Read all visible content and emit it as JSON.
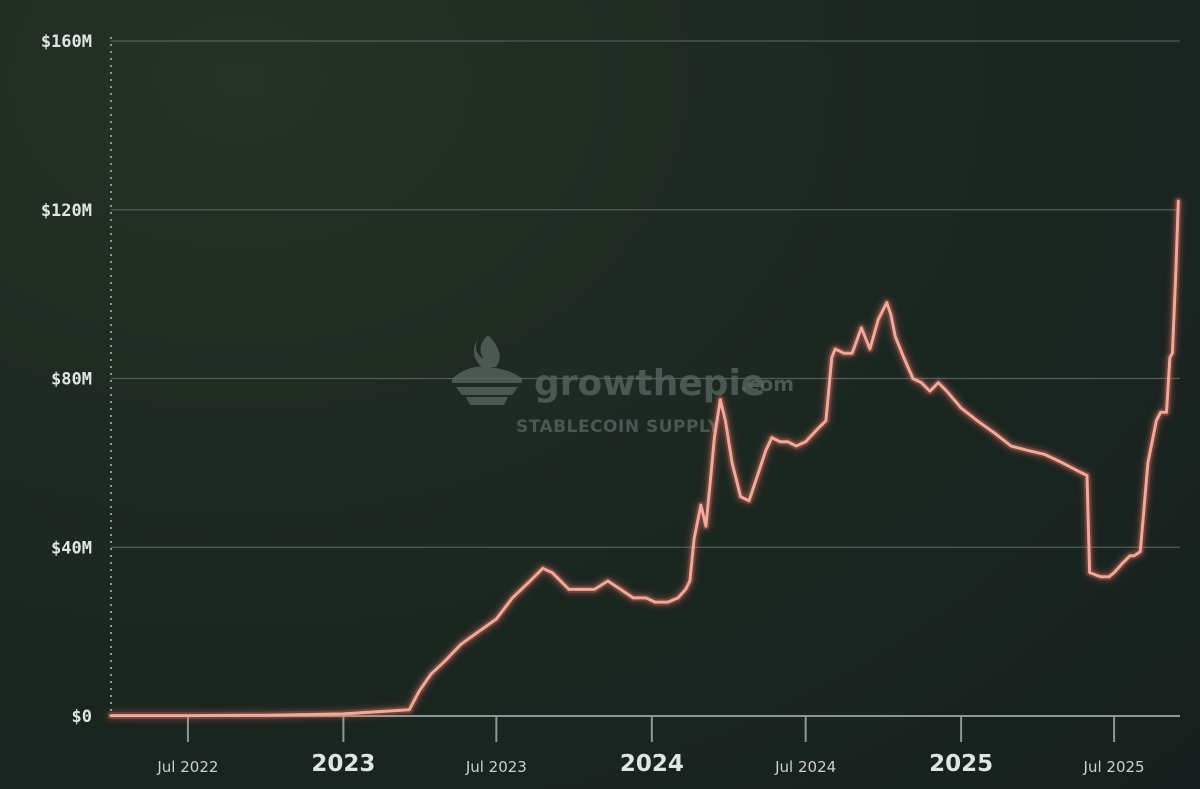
{
  "watermark": {
    "brand": "growthepie",
    "brand_suffix": ".com",
    "subtitle": "STABLECOIN SUPPLY"
  },
  "colors": {
    "line": "#f0a99b",
    "glow": "#ff7a66",
    "grid": "#5c6663",
    "axis": "#8c9894"
  },
  "chart_data": {
    "type": "line",
    "title": "",
    "xlabel": "",
    "ylabel": "",
    "ylim": [
      0,
      160
    ],
    "xlim": [
      "2022-04-01",
      "2025-09-17"
    ],
    "y_unit": "USD millions",
    "y_ticks": [
      {
        "value": 0,
        "label": "$0"
      },
      {
        "value": 40,
        "label": "$40M"
      },
      {
        "value": 80,
        "label": "$80M"
      },
      {
        "value": 120,
        "label": "$120M"
      },
      {
        "value": 160,
        "label": "$160M"
      }
    ],
    "x_ticks": [
      {
        "date": "2022-07-01",
        "label": "Jul 2022",
        "major": false
      },
      {
        "date": "2023-01-01",
        "label": "2023",
        "major": true
      },
      {
        "date": "2023-07-01",
        "label": "Jul 2023",
        "major": false
      },
      {
        "date": "2024-01-01",
        "label": "2024",
        "major": true
      },
      {
        "date": "2024-07-01",
        "label": "Jul 2024",
        "major": false
      },
      {
        "date": "2025-01-01",
        "label": "2025",
        "major": true
      },
      {
        "date": "2025-07-01",
        "label": "Jul 2025",
        "major": false
      }
    ],
    "grid": true,
    "legend": "none",
    "series": [
      {
        "x": [
          "2022-04-01",
          "2022-07-01",
          "2022-10-01",
          "2023-01-01",
          "2023-03-20",
          "2023-04-01",
          "2023-04-15",
          "2023-05-01",
          "2023-05-20",
          "2023-06-10",
          "2023-07-01",
          "2023-07-20",
          "2023-08-10",
          "2023-08-25",
          "2023-09-05",
          "2023-09-15",
          "2023-09-25",
          "2023-10-10",
          "2023-10-25",
          "2023-11-10",
          "2023-11-25",
          "2023-12-10",
          "2023-12-25",
          "2024-01-05",
          "2024-01-20",
          "2024-02-01",
          "2024-02-10",
          "2024-02-15",
          "2024-02-20",
          "2024-02-28",
          "2024-03-05",
          "2024-03-10",
          "2024-03-15",
          "2024-03-22",
          "2024-03-28",
          "2024-04-05",
          "2024-04-15",
          "2024-04-25",
          "2024-05-05",
          "2024-05-15",
          "2024-05-22",
          "2024-06-01",
          "2024-06-10",
          "2024-06-20",
          "2024-07-01",
          "2024-07-15",
          "2024-07-25",
          "2024-08-01",
          "2024-08-05",
          "2024-08-15",
          "2024-08-25",
          "2024-09-05",
          "2024-09-15",
          "2024-09-25",
          "2024-10-05",
          "2024-10-10",
          "2024-10-15",
          "2024-10-25",
          "2024-11-05",
          "2024-11-15",
          "2024-11-25",
          "2024-12-05",
          "2024-12-15",
          "2025-01-01",
          "2025-01-20",
          "2025-02-10",
          "2025-03-01",
          "2025-03-20",
          "2025-04-10",
          "2025-05-01",
          "2025-05-20",
          "2025-05-30",
          "2025-06-02",
          "2025-06-15",
          "2025-06-25",
          "2025-07-01",
          "2025-07-10",
          "2025-07-20",
          "2025-07-25",
          "2025-08-01",
          "2025-08-10",
          "2025-08-20",
          "2025-08-25",
          "2025-09-01",
          "2025-09-05",
          "2025-09-08",
          "2025-09-12",
          "2025-09-15"
        ],
        "y": [
          0.1,
          0.1,
          0.2,
          0.5,
          1.5,
          6,
          10,
          13,
          17,
          20,
          23,
          28,
          32,
          35,
          34,
          32,
          30,
          30,
          30,
          32,
          30,
          28,
          28,
          27,
          27,
          28,
          30,
          32,
          42,
          50,
          45,
          55,
          66,
          75,
          70,
          60,
          52,
          51,
          57,
          63,
          66,
          65,
          65,
          64,
          65,
          68,
          70,
          85,
          87,
          86,
          86,
          92,
          87,
          94,
          98,
          95,
          90,
          85,
          80,
          79,
          77,
          79,
          77,
          73,
          70,
          67,
          64,
          63,
          62,
          60,
          58,
          57,
          34,
          33,
          33,
          34,
          36,
          38,
          38,
          39,
          60,
          70,
          72,
          72,
          85,
          86,
          105,
          122
        ]
      }
    ]
  }
}
